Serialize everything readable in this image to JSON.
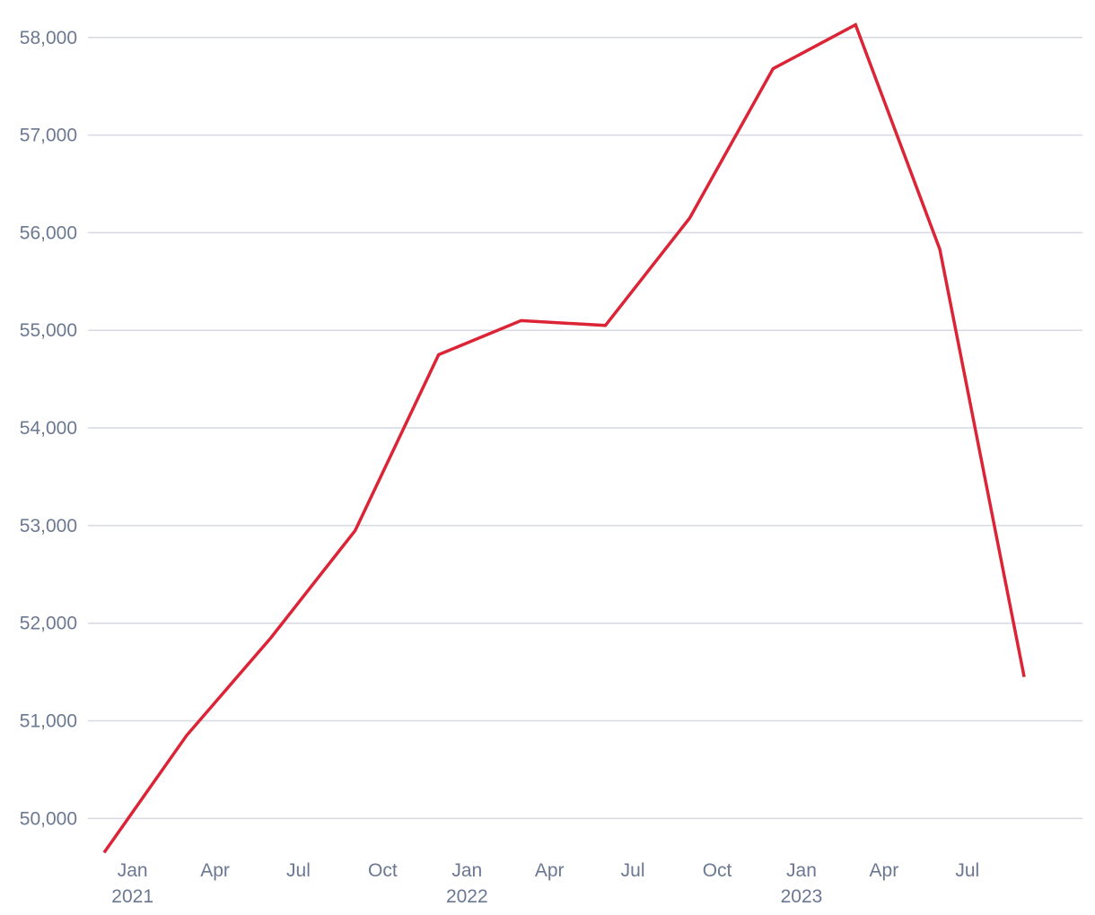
{
  "chart_data": {
    "type": "line",
    "title": "",
    "xlabel": "",
    "ylabel": "",
    "ylim": [
      49700,
      58200
    ],
    "xlim": [
      "2020-12-01",
      "2023-10-15"
    ],
    "y_ticks": [
      50000,
      51000,
      52000,
      53000,
      54000,
      55000,
      56000,
      57000,
      58000
    ],
    "y_tick_labels": [
      "50,000",
      "51,000",
      "52,000",
      "53,000",
      "54,000",
      "55,000",
      "56,000",
      "57,000",
      "58,000"
    ],
    "x_ticks": [
      {
        "date": "2021-01-01",
        "label": "Jan",
        "year": "2021"
      },
      {
        "date": "2021-04-01",
        "label": "Apr",
        "year": ""
      },
      {
        "date": "2021-07-01",
        "label": "Jul",
        "year": ""
      },
      {
        "date": "2021-10-01",
        "label": "Oct",
        "year": ""
      },
      {
        "date": "2022-01-01",
        "label": "Jan",
        "year": "2022"
      },
      {
        "date": "2022-04-01",
        "label": "Apr",
        "year": ""
      },
      {
        "date": "2022-07-01",
        "label": "Jul",
        "year": ""
      },
      {
        "date": "2022-10-01",
        "label": "Oct",
        "year": ""
      },
      {
        "date": "2023-01-01",
        "label": "Jan",
        "year": "2023"
      },
      {
        "date": "2023-04-01",
        "label": "Apr",
        "year": ""
      },
      {
        "date": "2023-07-01",
        "label": "Jul",
        "year": ""
      }
    ],
    "grid": true,
    "series": [
      {
        "color": "#dc2437",
        "points": [
          {
            "x": "2020-12-01",
            "y": 49650
          },
          {
            "x": "2021-03-01",
            "y": 50850
          },
          {
            "x": "2021-06-01",
            "y": 51850
          },
          {
            "x": "2021-09-01",
            "y": 52950
          },
          {
            "x": "2021-12-01",
            "y": 54750
          },
          {
            "x": "2022-03-01",
            "y": 55100
          },
          {
            "x": "2022-06-01",
            "y": 55050
          },
          {
            "x": "2022-09-01",
            "y": 56150
          },
          {
            "x": "2022-12-01",
            "y": 57680
          },
          {
            "x": "2023-03-01",
            "y": 58130
          },
          {
            "x": "2023-06-01",
            "y": 55830
          },
          {
            "x": "2023-09-01",
            "y": 51450
          }
        ]
      }
    ]
  }
}
